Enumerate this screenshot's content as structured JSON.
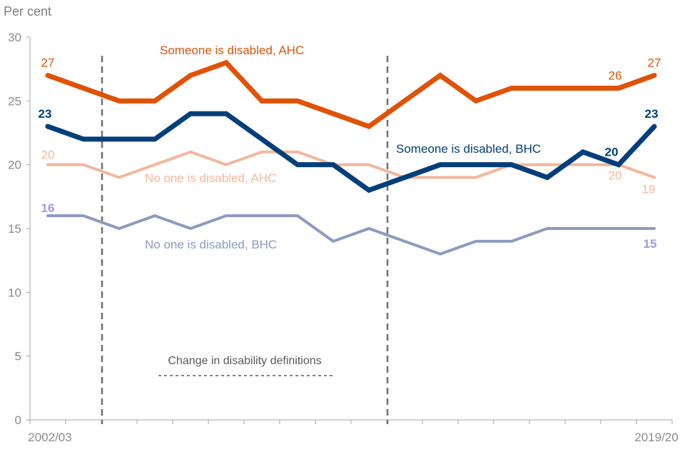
{
  "chart_data": {
    "type": "line",
    "ylabel": "Per cent",
    "ylim": [
      0,
      30
    ],
    "yticks": [
      0,
      5,
      10,
      15,
      20,
      25,
      30
    ],
    "categories": [
      "2002/03",
      "2003/04",
      "2004/05",
      "2005/06",
      "2006/07",
      "2007/08",
      "2008/09",
      "2009/10",
      "2010/11",
      "2011/12",
      "2012/13",
      "2013/14",
      "2014/15",
      "2015/16",
      "2016/17",
      "2017/18",
      "2018/19",
      "2019/20"
    ],
    "xtick_labels_shown": [
      "2002/03",
      "2019/20"
    ],
    "grid": false,
    "annotation": "Change in disability definitions",
    "definition_changes_between": [
      [
        "2003/04",
        "2004/05"
      ],
      [
        "2011/12",
        "2012/13"
      ]
    ],
    "series": [
      {
        "name": "Someone is disabled, AHC",
        "color": "#E05206",
        "width": 7,
        "values": [
          27,
          26,
          25,
          25,
          27,
          28,
          25,
          25,
          24,
          23,
          25,
          27,
          25,
          26,
          26,
          26,
          26,
          27
        ],
        "labels": [
          {
            "i": 0,
            "text": "27"
          },
          {
            "i": 16,
            "text": "26"
          },
          {
            "i": 17,
            "text": "27"
          }
        ]
      },
      {
        "name": "Someone is disabled, BHC",
        "color": "#003F7A",
        "width": 7,
        "values": [
          23,
          22,
          22,
          22,
          24,
          24,
          22,
          20,
          20,
          18,
          19,
          20,
          20,
          20,
          19,
          21,
          20,
          23
        ],
        "labels": [
          {
            "i": 0,
            "text": "23"
          },
          {
            "i": 16,
            "text": "20"
          },
          {
            "i": 17,
            "text": "23"
          }
        ]
      },
      {
        "name": "No one is disabled, AHC",
        "color": "#F2B79C",
        "width": 4,
        "values": [
          20,
          20,
          19,
          20,
          21,
          20,
          21,
          21,
          20,
          20,
          19,
          19,
          19,
          20,
          20,
          20,
          20,
          19
        ],
        "labels": [
          {
            "i": 0,
            "text": "20"
          },
          {
            "i": 16,
            "text": "20"
          },
          {
            "i": 17,
            "text": "19"
          }
        ]
      },
      {
        "name": "No one is disabled, BHC",
        "color": "#8C9AC0",
        "width": 4,
        "values": [
          16,
          16,
          15,
          16,
          15,
          16,
          16,
          16,
          14,
          15,
          14,
          13,
          14,
          14,
          15,
          15,
          15,
          15
        ],
        "labels": [
          {
            "i": 0,
            "text": "16"
          },
          {
            "i": 17,
            "text": "15"
          }
        ]
      }
    ],
    "label_colors": {
      "No one is disabled, BHC": "#9A9AE6"
    }
  }
}
